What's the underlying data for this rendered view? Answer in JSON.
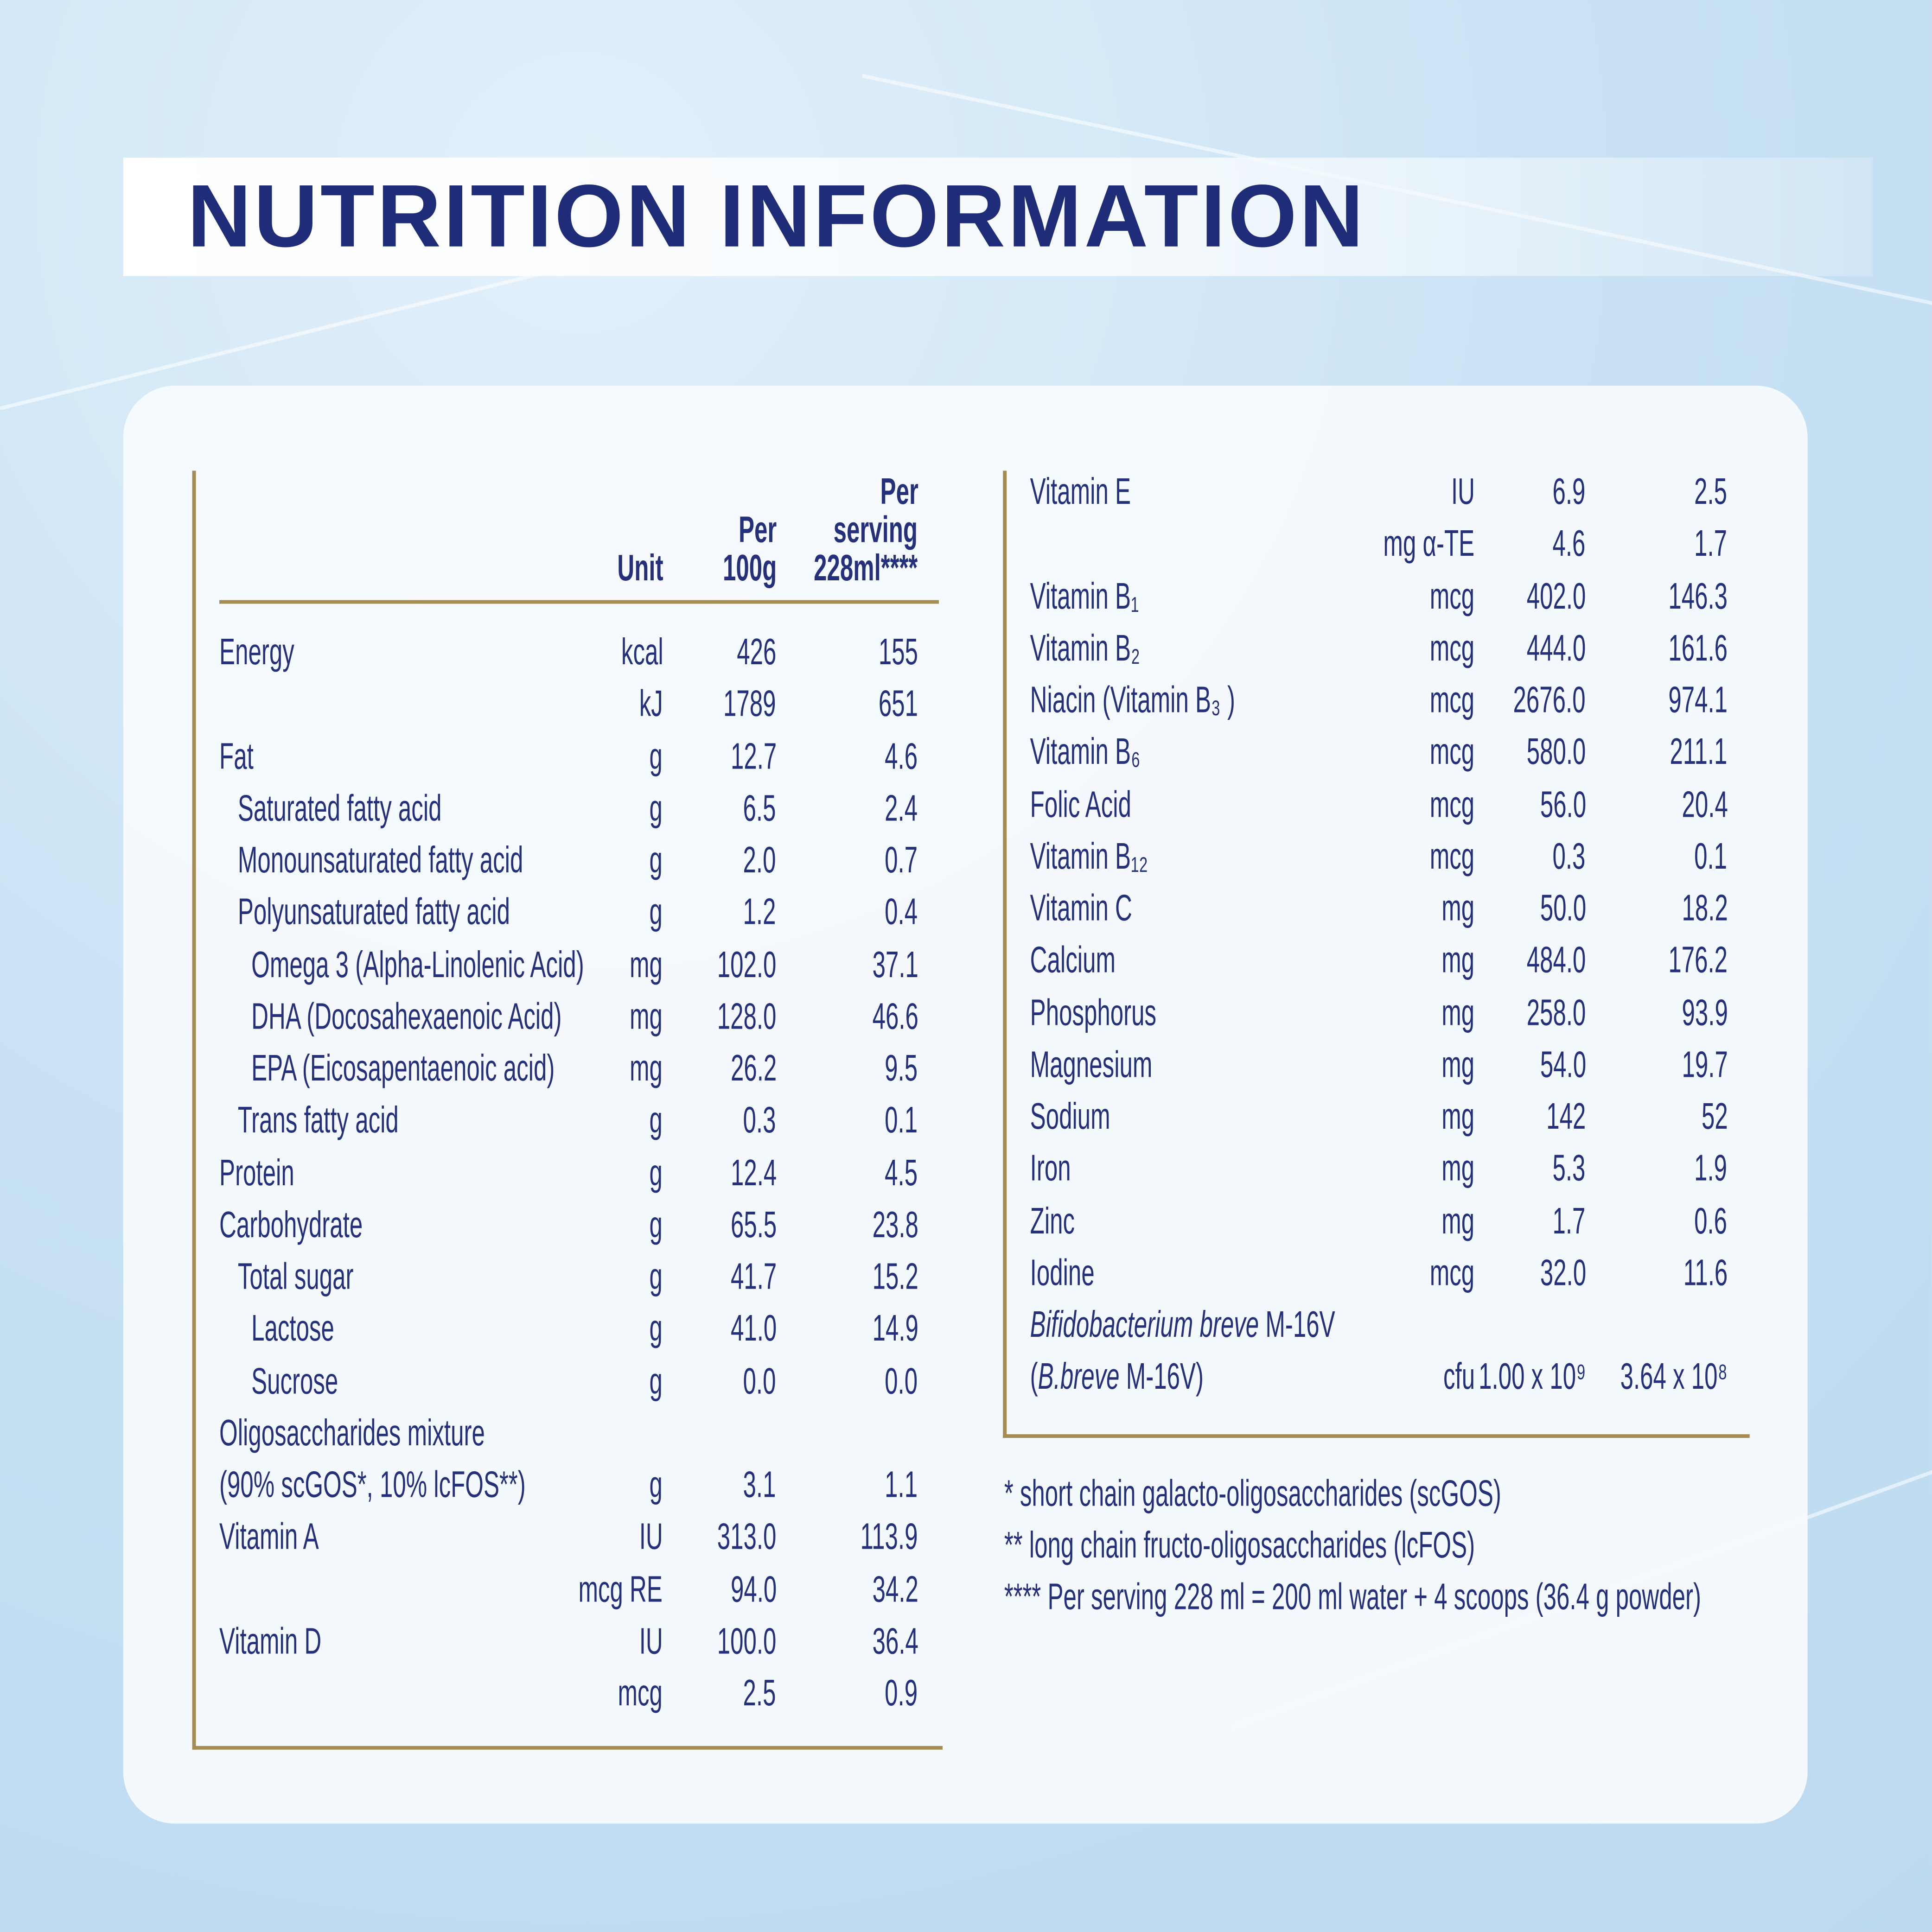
{
  "title": "NUTRITION INFORMATION",
  "left_table": {
    "header": [
      [
        "Unit"
      ],
      [
        "Per",
        "100g"
      ],
      [
        "Per",
        "serving",
        "228ml****"
      ]
    ],
    "rows": [
      {
        "name": [
          "Energy"
        ],
        "amounts": [
          {
            "unit": "kcal",
            "per_100g": "426",
            "per_serving": "155"
          },
          {
            "unit": "kJ",
            "per_100g": "1789",
            "per_serving": "651"
          }
        ]
      },
      {
        "name": [
          "Fat"
        ],
        "amounts": [
          {
            "unit": "g",
            "per_100g": "12.7",
            "per_serving": "4.6"
          }
        ],
        "children": [
          {
            "name": [
              "Saturated fatty acid"
            ],
            "amounts": [
              {
                "unit": "g",
                "per_100g": "6.5",
                "per_serving": "2.4"
              }
            ]
          },
          {
            "name": [
              "Monounsaturated fatty acid"
            ],
            "amounts": [
              {
                "unit": "g",
                "per_100g": "2.0",
                "per_serving": "0.7"
              }
            ]
          },
          {
            "name": [
              "Polyunsaturated fatty acid"
            ],
            "amounts": [
              {
                "unit": "g",
                "per_100g": "1.2",
                "per_serving": "0.4"
              }
            ],
            "children": [
              {
                "name": [
                  "Omega 3 (Alpha-Linolenic Acid)"
                ],
                "amounts": [
                  {
                    "unit": "mg",
                    "per_100g": "102.0",
                    "per_serving": "37.1"
                  }
                ]
              },
              {
                "name": [
                  "DHA (Docosahexaenoic Acid)"
                ],
                "amounts": [
                  {
                    "unit": "mg",
                    "per_100g": "128.0",
                    "per_serving": "46.6"
                  }
                ]
              },
              {
                "name": [
                  "EPA (Eicosapentaenoic acid)"
                ],
                "amounts": [
                  {
                    "unit": "mg",
                    "per_100g": "26.2",
                    "per_serving": "9.5"
                  }
                ]
              }
            ]
          },
          {
            "name": [
              "Trans fatty acid"
            ],
            "amounts": [
              {
                "unit": "g",
                "per_100g": "0.3",
                "per_serving": "0.1"
              }
            ]
          }
        ]
      },
      {
        "name": [
          "Protein"
        ],
        "amounts": [
          {
            "unit": "g",
            "per_100g": "12.4",
            "per_serving": "4.5"
          }
        ]
      },
      {
        "name": [
          "Carbohydrate"
        ],
        "amounts": [
          {
            "unit": "g",
            "per_100g": "65.5",
            "per_serving": "23.8"
          }
        ],
        "children": [
          {
            "name": [
              "Total sugar"
            ],
            "amounts": [
              {
                "unit": "g",
                "per_100g": "41.7",
                "per_serving": "15.2"
              }
            ],
            "children": [
              {
                "name": [
                  "Lactose"
                ],
                "amounts": [
                  {
                    "unit": "g",
                    "per_100g": "41.0",
                    "per_serving": "14.9"
                  }
                ]
              },
              {
                "name": [
                  "Sucrose"
                ],
                "amounts": [
                  {
                    "unit": "g",
                    "per_100g": "0.0",
                    "per_serving": "0.0"
                  }
                ]
              }
            ]
          }
        ]
      },
      {
        "name": [
          "Oligosaccharides mixture",
          "(90% scGOS*, 10% lcFOS**)"
        ],
        "amounts": [
          {
            "unit": "g",
            "per_100g": "3.1",
            "per_serving": "1.1"
          }
        ]
      },
      {
        "name": [
          "Vitamin A"
        ],
        "amounts": [
          {
            "unit": "IU",
            "per_100g": "313.0",
            "per_serving": "113.9"
          },
          {
            "unit": "mcg RE",
            "per_100g": "94.0",
            "per_serving": "34.2"
          }
        ]
      },
      {
        "name": [
          "Vitamin D"
        ],
        "amounts": [
          {
            "unit": "IU",
            "per_100g": "100.0",
            "per_serving": "36.4"
          },
          {
            "unit": "mcg",
            "per_100g": "2.5",
            "per_serving": "0.9"
          }
        ]
      }
    ]
  },
  "right_table": {
    "rows": [
      {
        "name": [
          "Vitamin E"
        ],
        "amounts": [
          {
            "unit": "IU",
            "per_100g": "6.9",
            "per_serving": "2.5"
          },
          {
            "unit": "mg α-TE",
            "per_100g": "4.6",
            "per_serving": "1.7"
          }
        ]
      },
      {
        "name": [
          "Vitamin B₁"
        ],
        "amounts": [
          {
            "unit": "mcg",
            "per_100g": "402.0",
            "per_serving": "146.3"
          }
        ]
      },
      {
        "name": [
          "Vitamin B₂"
        ],
        "amounts": [
          {
            "unit": "mcg",
            "per_100g": "444.0",
            "per_serving": "161.6"
          }
        ]
      },
      {
        "name": [
          "Niacin (Vitamin B₃ )"
        ],
        "amounts": [
          {
            "unit": "mcg",
            "per_100g": "2676.0",
            "per_serving": "974.1"
          }
        ]
      },
      {
        "name": [
          "Vitamin B₆"
        ],
        "amounts": [
          {
            "unit": "mcg",
            "per_100g": "580.0",
            "per_serving": "211.1"
          }
        ]
      },
      {
        "name": [
          "Folic Acid"
        ],
        "amounts": [
          {
            "unit": "mcg",
            "per_100g": "56.0",
            "per_serving": "20.4"
          }
        ]
      },
      {
        "name": [
          "Vitamin B₁₂"
        ],
        "amounts": [
          {
            "unit": "mcg",
            "per_100g": "0.3",
            "per_serving": "0.1"
          }
        ]
      },
      {
        "name": [
          "Vitamin C"
        ],
        "amounts": [
          {
            "unit": "mg",
            "per_100g": "50.0",
            "per_serving": "18.2"
          }
        ]
      },
      {
        "name": [
          "Calcium"
        ],
        "amounts": [
          {
            "unit": "mg",
            "per_100g": "484.0",
            "per_serving": "176.2"
          }
        ]
      },
      {
        "name": [
          "Phosphorus"
        ],
        "amounts": [
          {
            "unit": "mg",
            "per_100g": "258.0",
            "per_serving": "93.9"
          }
        ]
      },
      {
        "name": [
          "Magnesium"
        ],
        "amounts": [
          {
            "unit": "mg",
            "per_100g": "54.0",
            "per_serving": "19.7"
          }
        ]
      },
      {
        "name": [
          "Sodium"
        ],
        "amounts": [
          {
            "unit": "mg",
            "per_100g": "142",
            "per_serving": "52"
          }
        ]
      },
      {
        "name": [
          "Iron"
        ],
        "amounts": [
          {
            "unit": "mg",
            "per_100g": "5.3",
            "per_serving": "1.9"
          }
        ]
      },
      {
        "name": [
          "Zinc"
        ],
        "amounts": [
          {
            "unit": "mg",
            "per_100g": "1.7",
            "per_serving": "0.6"
          }
        ]
      },
      {
        "name": [
          "Iodine"
        ],
        "amounts": [
          {
            "unit": "mcg",
            "per_100g": "32.0",
            "per_serving": "11.6"
          }
        ]
      },
      {
        "name": [
          [
            {
              "text": "Bifidobacterium breve",
              "italic": true
            },
            {
              "text": " M-16V"
            }
          ],
          [
            {
              "text": "("
            },
            {
              "text": "B.breve",
              "italic": true
            },
            {
              "text": " M-16V)"
            }
          ]
        ],
        "amounts": [
          {
            "unit": "cfu",
            "per_100g": "1.00 x 10⁹",
            "per_serving": "3.64 x 10⁸"
          }
        ]
      }
    ]
  },
  "footnotes": [
    "* short chain galacto-oligosaccharides (scGOS)",
    "** long chain fructo-oligosaccharides (lcFOS)",
    "**** Per serving 228 ml = 200 ml water + 4 scoops (36.4 g powder)"
  ]
}
